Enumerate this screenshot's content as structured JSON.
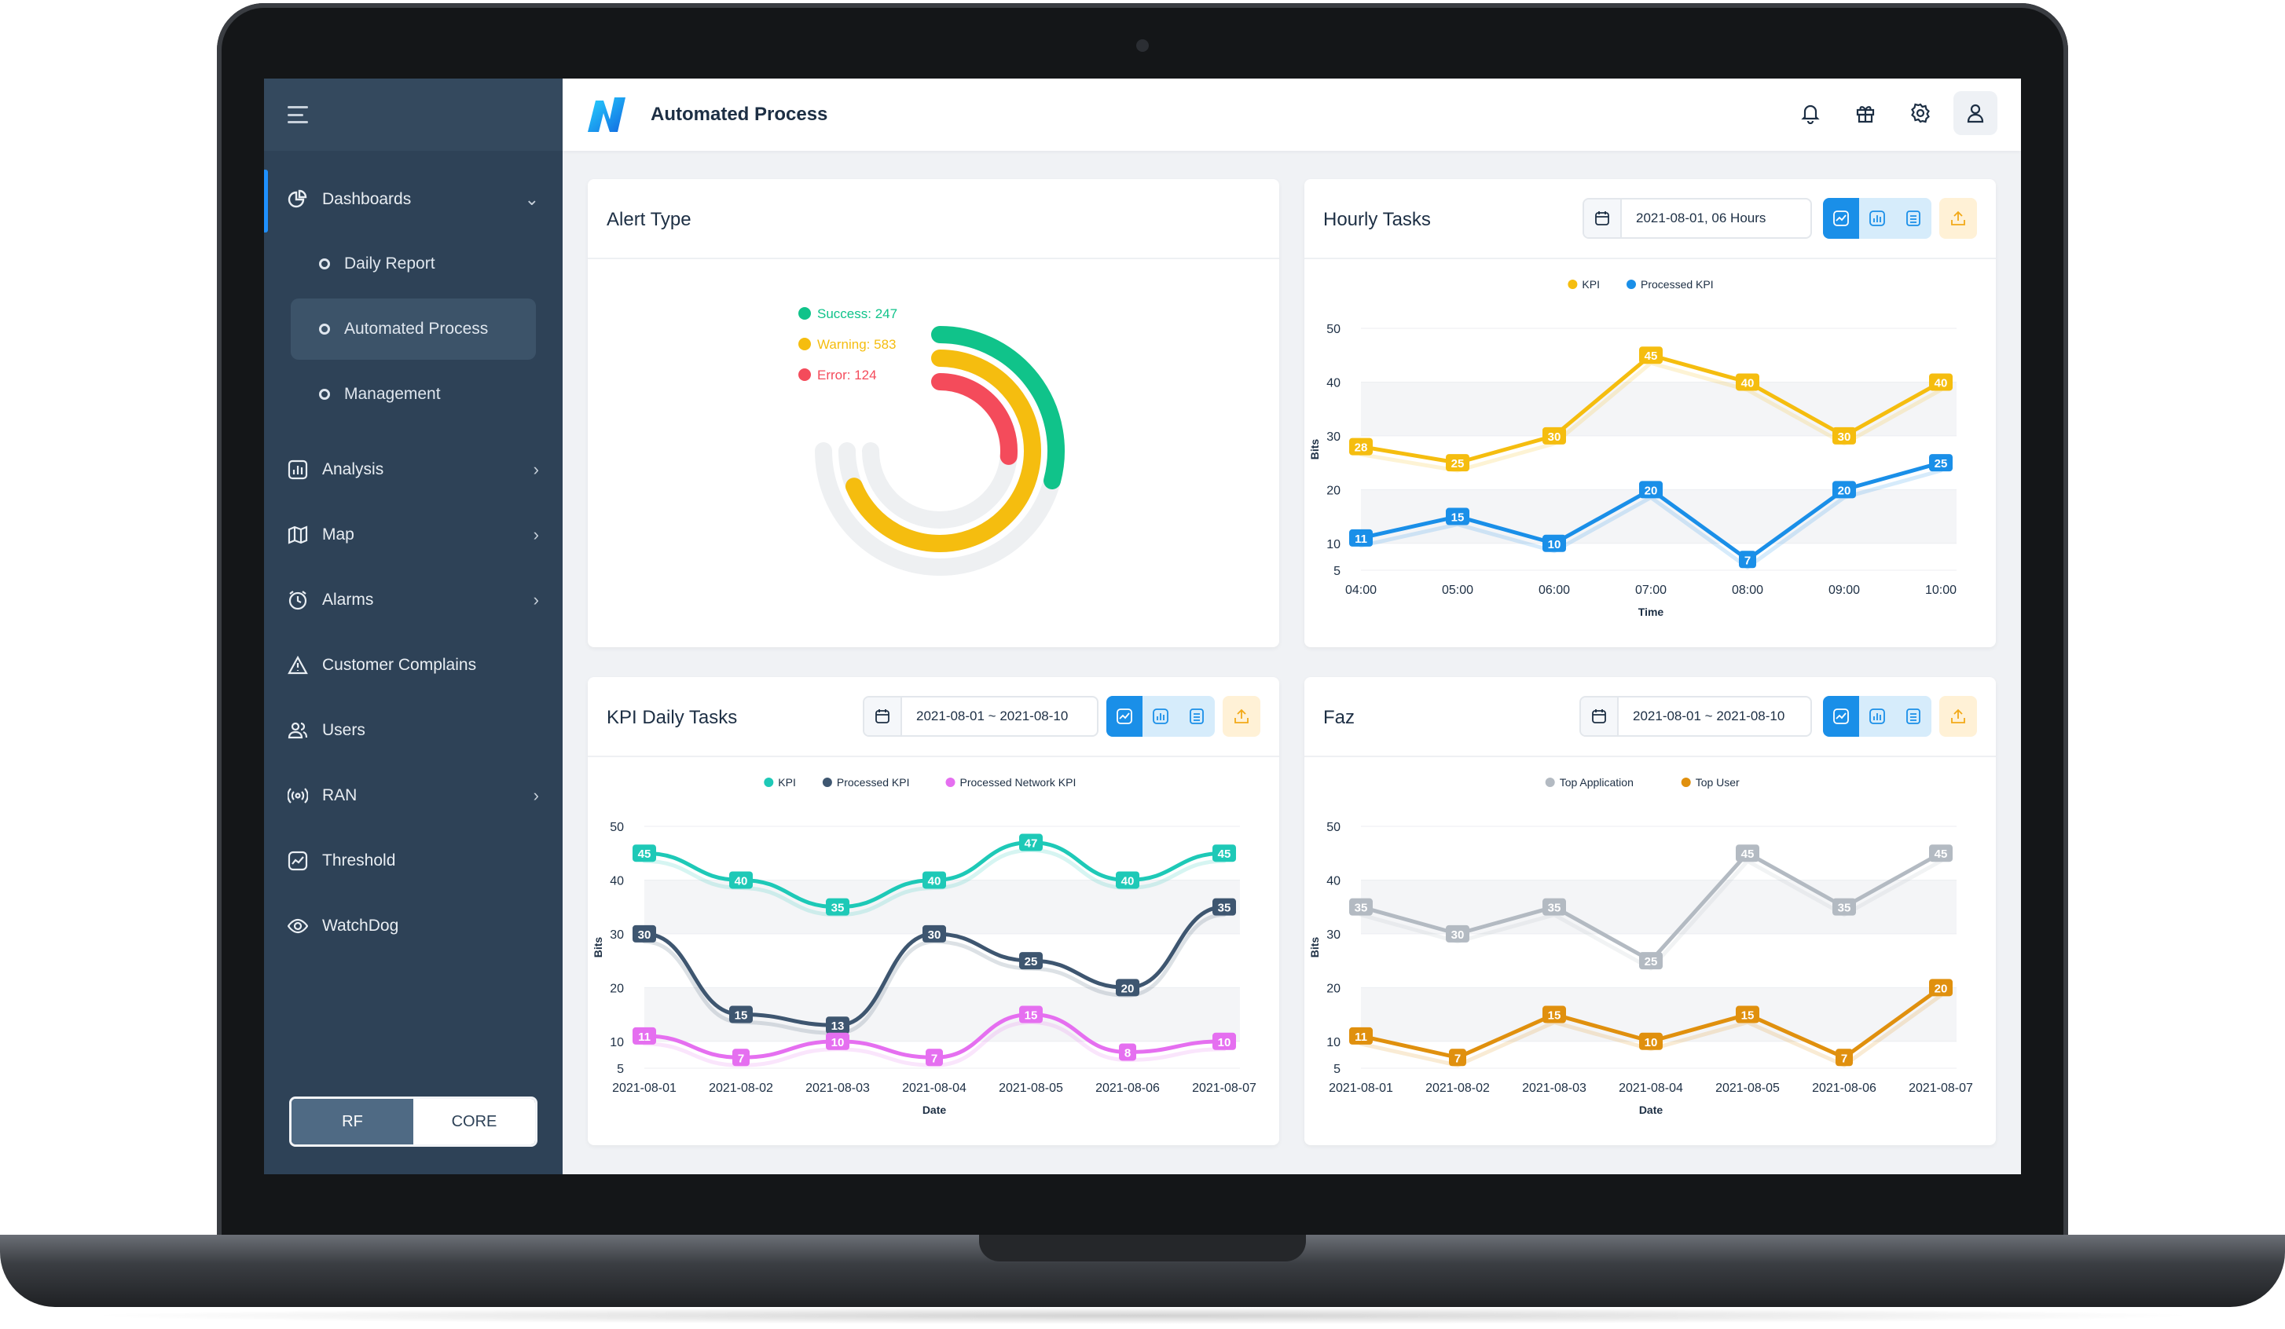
{
  "app": {
    "title": "Automated Process"
  },
  "sidebar": {
    "items": [
      {
        "label": "Dashboards",
        "icon": "pie-chart-icon",
        "expanded": true
      },
      {
        "label": "Analysis",
        "icon": "bar-chart-icon"
      },
      {
        "label": "Map",
        "icon": "map-icon"
      },
      {
        "label": "Alarms",
        "icon": "alarm-clock-icon"
      },
      {
        "label": "Customer Complains",
        "icon": "warning-icon"
      },
      {
        "label": "Users",
        "icon": "users-icon"
      },
      {
        "label": "RAN",
        "icon": "radio-signal-icon"
      },
      {
        "label": "Threshold",
        "icon": "threshold-icon"
      },
      {
        "label": "WatchDog",
        "icon": "watchdog-icon"
      }
    ],
    "sub_items": [
      {
        "label": "Daily Report"
      },
      {
        "label": "Automated Process",
        "active": true
      },
      {
        "label": "Management"
      }
    ],
    "toggle": {
      "rf": "RF",
      "core": "CORE",
      "selected": "RF"
    }
  },
  "header": {
    "icons": [
      "bell-icon",
      "gift-icon",
      "gear-icon",
      "user-icon"
    ]
  },
  "colors": {
    "accent": "#1a8fe8",
    "sidebar": "#2e4257",
    "success": "#10c38a",
    "warning": "#f5bd0f",
    "error": "#f44b5b"
  },
  "cards": {
    "alert": {
      "title": "Alert Type"
    },
    "hourly": {
      "title": "Hourly Tasks",
      "date": "2021-08-01, 06 Hours"
    },
    "kpi": {
      "title": "KPI Daily Tasks",
      "date": "2021-08-01 ~ 2021-08-10"
    },
    "faz": {
      "title": "Faz",
      "date": "2021-08-01 ~ 2021-08-10"
    }
  },
  "chart_data": [
    {
      "type": "pie",
      "variant": "radial-bar",
      "series": [
        {
          "name": "Success",
          "label": "Success: 247",
          "value": 247,
          "color": "#10c38a"
        },
        {
          "name": "Warning",
          "label": "Warning: 583",
          "value": 583,
          "color": "#f5bd0f"
        },
        {
          "name": "Error",
          "label": "Error: 124",
          "value": 124,
          "color": "#f44b5b"
        }
      ],
      "legend": "top-left"
    },
    {
      "type": "line",
      "x": [
        "04:00",
        "05:00",
        "06:00",
        "07:00",
        "08:00",
        "09:00",
        "10:00"
      ],
      "xlabel": "Time",
      "ylabel": "Bits",
      "ylim": [
        5,
        50
      ],
      "yticks": [
        5,
        10,
        20,
        30,
        40,
        50
      ],
      "series": [
        {
          "name": "KPI",
          "values": [
            28,
            25,
            30,
            45,
            40,
            30,
            40
          ],
          "color": "#f5bd0f"
        },
        {
          "name": "Processed KPI",
          "values": [
            11,
            15,
            10,
            20,
            7,
            20,
            25
          ],
          "color": "#1a8fe8"
        }
      ],
      "legend": "top-center"
    },
    {
      "type": "line",
      "smooth": true,
      "x": [
        "2021-08-01",
        "2021-08-02",
        "2021-08-03",
        "2021-08-04",
        "2021-08-05",
        "2021-08-06",
        "2021-08-07"
      ],
      "xlabel": "Date",
      "ylabel": "Bits",
      "ylim": [
        5,
        50
      ],
      "yticks": [
        5,
        10,
        20,
        30,
        40,
        50
      ],
      "series": [
        {
          "name": "KPI",
          "values": [
            45,
            40,
            35,
            40,
            47,
            40,
            45
          ],
          "color": "#1ec9b7"
        },
        {
          "name": "Processed KPI",
          "values": [
            30,
            15,
            13,
            30,
            25,
            20,
            35
          ],
          "color": "#3e5670"
        },
        {
          "name": "Processed Network KPI",
          "values": [
            11,
            7,
            10,
            7,
            15,
            8,
            10
          ],
          "color": "#e56ff0"
        }
      ],
      "legend": "top-center"
    },
    {
      "type": "line",
      "x": [
        "2021-08-01",
        "2021-08-02",
        "2021-08-03",
        "2021-08-04",
        "2021-08-05",
        "2021-08-06",
        "2021-08-07"
      ],
      "xlabel": "Date",
      "ylabel": "Bits",
      "ylim": [
        5,
        50
      ],
      "yticks": [
        5,
        10,
        20,
        30,
        40,
        50
      ],
      "series": [
        {
          "name": "Top Application",
          "values": [
            35,
            30,
            35,
            25,
            45,
            35,
            45
          ],
          "color": "#b3bac2"
        },
        {
          "name": "Top User",
          "values": [
            11,
            7,
            15,
            10,
            15,
            7,
            20
          ],
          "color": "#e0900e"
        }
      ],
      "legend": "top-center"
    }
  ]
}
